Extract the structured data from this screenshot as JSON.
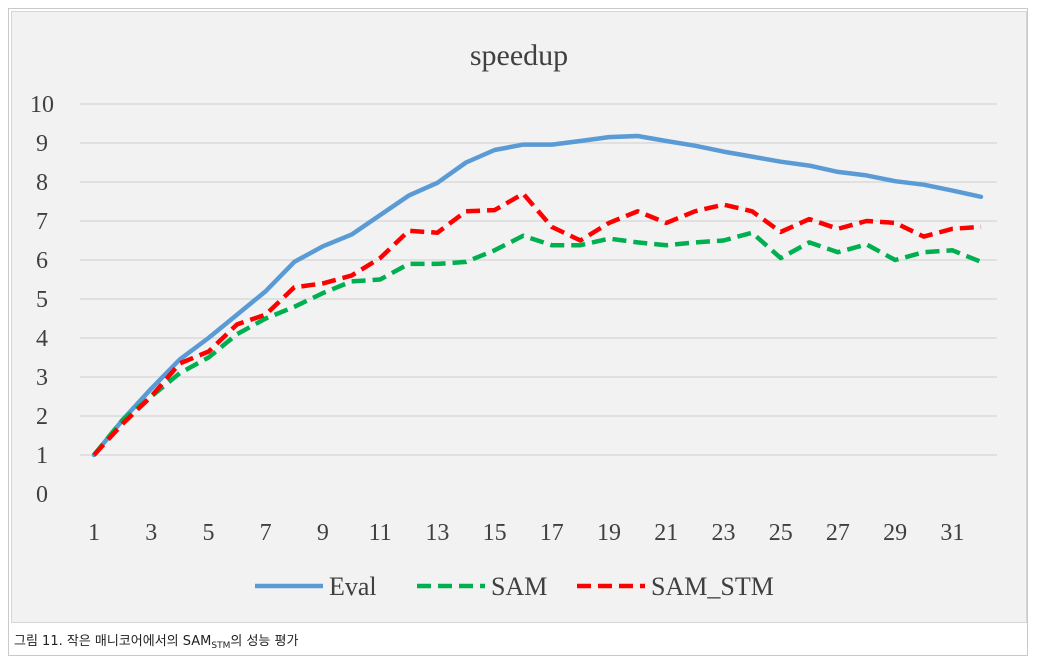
{
  "chart_data": {
    "type": "line",
    "title": "speedup",
    "xlabel": "",
    "ylabel": "",
    "ylim": [
      0,
      10
    ],
    "yticks": [
      "0",
      "1",
      "2",
      "3",
      "4",
      "5",
      "6",
      "7",
      "8",
      "9",
      "10"
    ],
    "xticks": [
      "1",
      "3",
      "5",
      "7",
      "9",
      "11",
      "13",
      "15",
      "17",
      "19",
      "21",
      "23",
      "25",
      "27",
      "29",
      "31"
    ],
    "grid": true,
    "legend_position": "bottom",
    "x": [
      1,
      2,
      3,
      4,
      5,
      6,
      7,
      8,
      9,
      10,
      11,
      12,
      13,
      14,
      15,
      16,
      17,
      18,
      19,
      20,
      21,
      22,
      23,
      24,
      25,
      26,
      27,
      28,
      29,
      30,
      31,
      32
    ],
    "series": [
      {
        "name": "Eval",
        "color": "#5b9bd5",
        "dash": "solid",
        "values": [
          1.0,
          1.9,
          2.7,
          3.45,
          4.0,
          4.6,
          5.2,
          5.95,
          6.35,
          6.65,
          7.15,
          7.65,
          7.98,
          8.5,
          8.82,
          8.96,
          8.96,
          9.05,
          9.15,
          9.18,
          9.05,
          8.93,
          8.78,
          8.65,
          8.52,
          8.42,
          8.26,
          8.17,
          8.02,
          7.93,
          7.78,
          7.62
        ]
      },
      {
        "name": "SAM",
        "color": "#00b050",
        "dash": "dashed",
        "values": [
          1.0,
          1.9,
          2.5,
          3.1,
          3.5,
          4.1,
          4.5,
          4.8,
          5.15,
          5.45,
          5.5,
          5.9,
          5.9,
          5.95,
          6.25,
          6.62,
          6.38,
          6.38,
          6.55,
          6.45,
          6.38,
          6.45,
          6.5,
          6.7,
          6.05,
          6.45,
          6.2,
          6.4,
          6.0,
          6.2,
          6.25,
          5.95
        ]
      },
      {
        "name": "SAM_STM",
        "color": "#ff0000",
        "dash": "dashed",
        "values": [
          1.0,
          1.8,
          2.5,
          3.35,
          3.65,
          4.35,
          4.6,
          5.3,
          5.4,
          5.6,
          6.05,
          6.75,
          6.7,
          7.25,
          7.28,
          7.7,
          6.85,
          6.5,
          6.95,
          7.25,
          6.95,
          7.25,
          7.42,
          7.25,
          6.72,
          7.05,
          6.8,
          7.0,
          6.95,
          6.6,
          6.8,
          6.85
        ]
      }
    ]
  },
  "caption": {
    "prefix": "그림 11. 작은 매니코어에서의 SAM",
    "subscript": "STM",
    "suffix": "의 성능 평가"
  }
}
